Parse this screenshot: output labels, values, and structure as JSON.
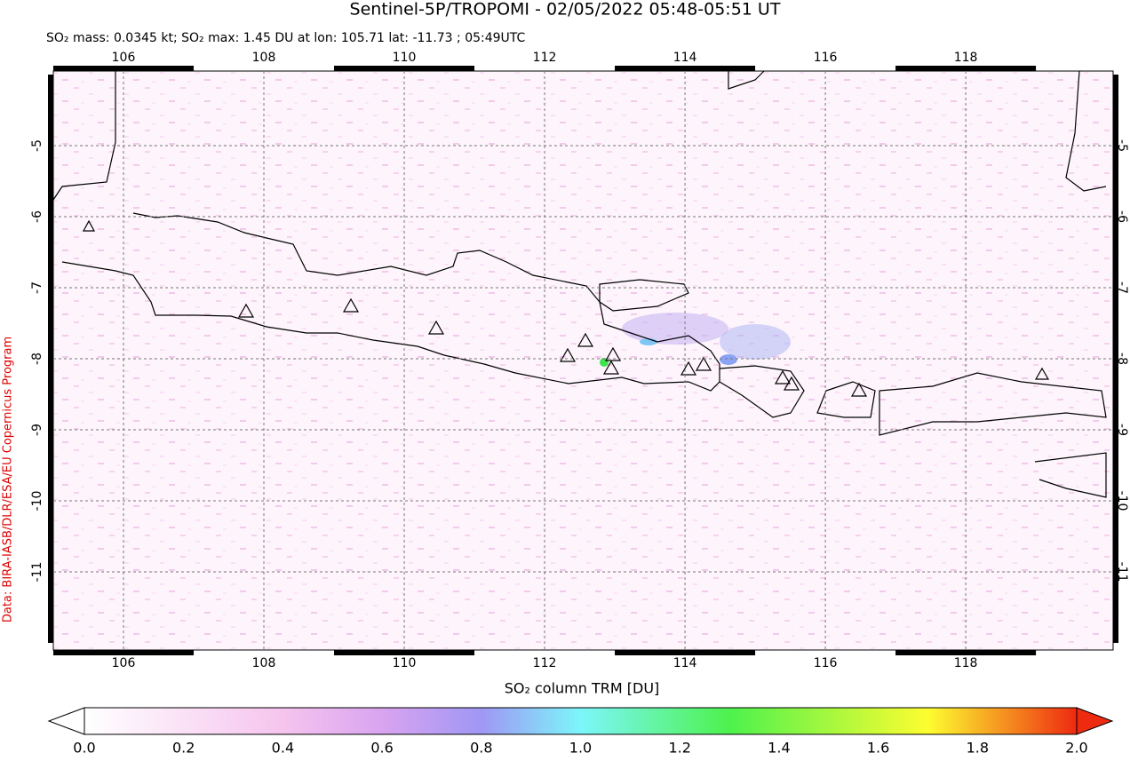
{
  "map": {
    "title": "Sentinel-5P/TROPOMI - 02/05/2022 05:48-05:51 UT",
    "subtitle": "SO₂ mass: 0.0345 kt; SO₂ max: 1.45 DU at lon: 105.71 lat: -11.73 ; 05:49UTC",
    "credit": "Data: BIRA-IASB/DLR/ESA/EU Copernicus Program",
    "xlim": [
      105,
      120.1
    ],
    "ylim": [
      -12.1,
      -3.95
    ],
    "xticks": [
      106,
      108,
      110,
      112,
      114,
      116,
      118
    ],
    "yticks": [
      -5,
      -6,
      -7,
      -8,
      -9,
      -10,
      -11
    ],
    "grid": true
  },
  "colorbar": {
    "label": "SO₂ column TRM [DU]",
    "lim": [
      0,
      2
    ],
    "ticks": [
      {
        "value": 0,
        "label": "0.0"
      },
      0.2,
      0.4,
      0.6,
      0.8,
      {
        "value": 1,
        "label": "1.0"
      },
      1.2,
      1.4,
      1.6,
      1.8,
      {
        "value": 2,
        "label": "2.0"
      }
    ]
  }
}
